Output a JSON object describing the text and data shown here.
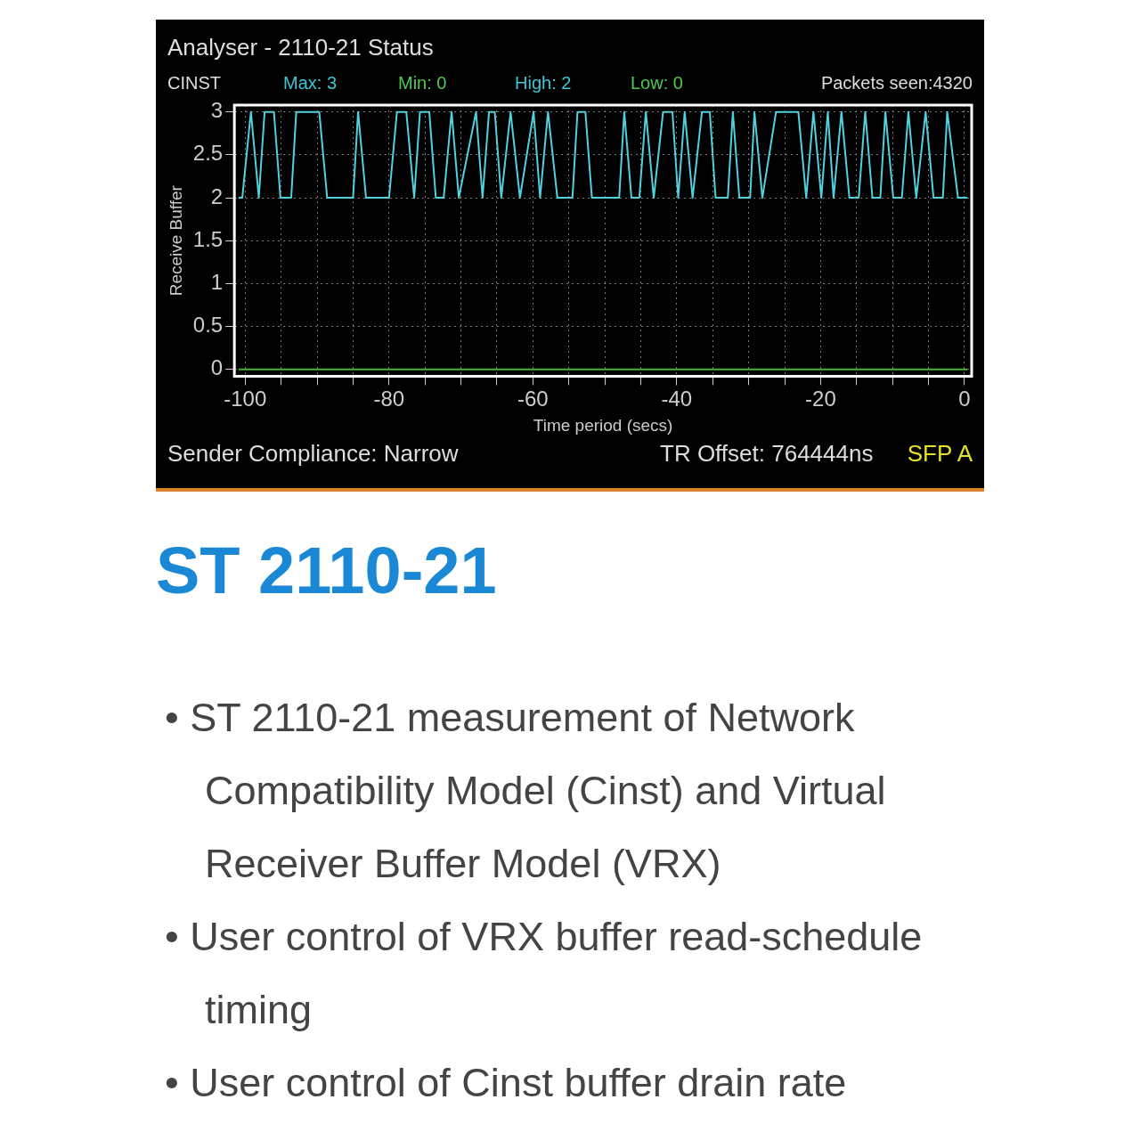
{
  "chart_data": {
    "type": "line",
    "title": "Analyser - 2110-21 Status",
    "xlabel": "Time period (secs)",
    "ylabel": "Receive Buffer",
    "xlim": [
      -101.5,
      1
    ],
    "ylim": [
      -0.08,
      3.08
    ],
    "xticks": [
      -100,
      {
        "value": -95,
        "label": null
      },
      {
        "value": -90,
        "label": null
      },
      {
        "value": -85,
        "label": null
      },
      -80,
      {
        "value": -75,
        "label": null
      },
      {
        "value": -70,
        "label": null
      },
      {
        "value": -65,
        "label": null
      },
      -60,
      {
        "value": -55,
        "label": null
      },
      {
        "value": -50,
        "label": null
      },
      {
        "value": -45,
        "label": null
      },
      -40,
      {
        "value": -35,
        "label": null
      },
      {
        "value": -30,
        "label": null
      },
      {
        "value": -25,
        "label": null
      },
      -20,
      {
        "value": -15,
        "label": null
      },
      {
        "value": -10,
        "label": null
      },
      {
        "value": -5,
        "label": null
      },
      0
    ],
    "yticks": [
      0,
      0.5,
      1,
      1.5,
      2,
      2.5,
      3
    ],
    "grid": true,
    "marker": "none",
    "line_style": "solid",
    "series": [
      {
        "color": "#4fd2de",
        "x": [
          -100.9,
          -100.4,
          -99.2,
          -98.1,
          -97.3,
          -96.0,
          -95.1,
          -93.6,
          -92.9,
          -89.7,
          -88.6,
          -85.0,
          -84.3,
          -83.2,
          -80.0,
          -78.9,
          -77.6,
          -76.5,
          -75.7,
          -74.4,
          -73.5,
          -72.4,
          -71.3,
          -70.3,
          -67.9,
          -67.0,
          -66.1,
          -65.3,
          -64.4,
          -63.1,
          -61.8,
          -59.9,
          -59.0,
          -57.9,
          -56.6,
          -54.5,
          -53.8,
          -52.7,
          -51.8,
          -48.0,
          -47.3,
          -46.3,
          -45.2,
          -44.3,
          -43.2,
          -41.9,
          -40.6,
          -39.8,
          -38.9,
          -37.8,
          -36.5,
          -35.4,
          -34.6,
          -32.9,
          -32.2,
          -31.3,
          -29.8,
          -29.2,
          -28.1,
          -26.2,
          -23.1,
          -22.0,
          -21.0,
          -19.9,
          -19.0,
          -18.2,
          -17.1,
          -16.0,
          -14.7,
          -13.8,
          -12.8,
          -11.7,
          -11.0,
          -9.9,
          -8.7,
          -7.8,
          -6.7,
          -5.4,
          -4.3,
          -3.0,
          -2.4,
          -0.9,
          0.4
        ],
        "values": [
          2,
          2,
          3,
          2,
          3,
          3,
          2,
          2,
          3,
          3,
          2,
          2,
          3,
          2,
          2,
          3,
          3,
          2,
          3,
          3,
          2,
          2,
          3,
          2,
          3,
          2,
          3,
          3,
          2,
          3,
          2,
          3,
          2,
          3,
          2,
          2,
          3,
          3,
          2,
          2,
          3,
          2,
          2,
          3,
          2,
          3,
          3,
          2,
          3,
          2,
          3,
          3,
          2,
          2,
          3,
          2,
          2,
          3,
          2,
          3,
          3,
          2,
          3,
          2,
          3,
          2,
          3,
          2,
          2,
          3,
          2,
          2,
          3,
          2,
          2,
          3,
          2,
          3,
          2,
          2,
          3,
          2,
          2
        ]
      },
      {
        "color": "#4caf3c",
        "x": [
          -100.9,
          0.4
        ],
        "values": [
          0,
          0
        ]
      }
    ],
    "annotations": [
      "CINST",
      "Max: 3",
      "Min: 0",
      "High: 2",
      "Low: 0",
      "Packets seen:4320",
      "Sender Compliance: Narrow",
      "TR Offset: 764444ns",
      "SFP A",
      "ST 2110-21",
      "• ST 2110-21 measurement of Network Compatibility Model (Cinst) and Virtual Receiver Buffer Model (VRX)",
      "• User control of VRX buffer read-schedule timing",
      "• User control of Cinst buffer drain rate"
    ]
  }
}
